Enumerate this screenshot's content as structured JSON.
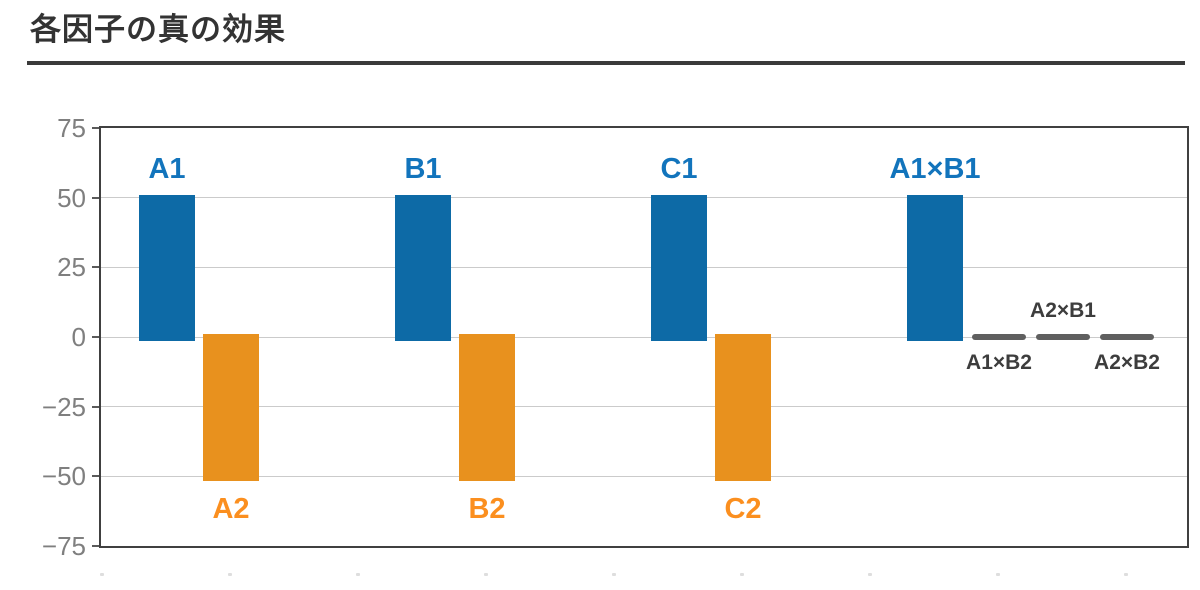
{
  "title": "各因子の真の効果",
  "chart_data": {
    "type": "bar",
    "title": "各因子の真の効果",
    "xlabel": "",
    "ylabel": "",
    "ylim": [
      -75,
      75
    ],
    "grid": "horizontal",
    "legend": "none",
    "yticks": [
      {
        "label": "75",
        "value": 75
      },
      {
        "label": "50",
        "value": 50
      },
      {
        "label": "25",
        "value": 25
      },
      {
        "label": "0",
        "value": 0
      },
      {
        "label": "−25",
        "value": -25
      },
      {
        "label": "−50",
        "value": -50
      },
      {
        "label": "−75",
        "value": -75
      }
    ],
    "gridline_values": [
      50,
      25,
      0,
      -25,
      -50
    ],
    "bars": [
      {
        "id": "a1",
        "label": "A1",
        "value": 51,
        "extent": [
          51,
          -1.5
        ],
        "pos": 0,
        "style": "blue",
        "label_side": "above"
      },
      {
        "id": "a2",
        "label": "A2",
        "value": -51,
        "extent": [
          1,
          -51.5
        ],
        "pos": 1,
        "style": "orange",
        "label_side": "below"
      },
      {
        "id": "b1",
        "label": "B1",
        "value": 51,
        "extent": [
          51,
          -1.5
        ],
        "pos": 4,
        "style": "blue",
        "label_side": "above"
      },
      {
        "id": "b2",
        "label": "B2",
        "value": -51,
        "extent": [
          1,
          -51.5
        ],
        "pos": 5,
        "style": "orange",
        "label_side": "below"
      },
      {
        "id": "c1",
        "label": "C1",
        "value": 51,
        "extent": [
          51,
          -1.5
        ],
        "pos": 8,
        "style": "blue",
        "label_side": "above"
      },
      {
        "id": "c2",
        "label": "C2",
        "value": -51,
        "extent": [
          1,
          -51.5
        ],
        "pos": 9,
        "style": "orange",
        "label_side": "below"
      },
      {
        "id": "a1xb1",
        "label": "A1×B1",
        "value": 51,
        "extent": [
          51,
          -1.5
        ],
        "pos": 12,
        "style": "blue",
        "label_side": "above"
      },
      {
        "id": "a1xb2",
        "label": "A1×B2",
        "value": 0,
        "extent": [
          1,
          -1
        ],
        "pos": 13,
        "style": "gray",
        "label_side": "below"
      },
      {
        "id": "a2xb1",
        "label": "A2×B1",
        "value": 0,
        "extent": [
          1,
          -1
        ],
        "pos": 14,
        "style": "gray",
        "label_side": "above"
      },
      {
        "id": "a2xb2",
        "label": "A2×B2",
        "value": 0,
        "extent": [
          1,
          -1
        ],
        "pos": 15,
        "style": "gray",
        "label_side": "below"
      }
    ],
    "colors": {
      "blue_bar": "#0d6aa6",
      "blue_label": "#1274bc",
      "orange_bar": "#e8911e",
      "orange_label": "#fb8f1f",
      "gray_bar": "#5f5f5f",
      "gray_label": "#3d3d3d",
      "grid": "#cbcbcb",
      "border": "#404040",
      "tick_text": "#7f7f7f"
    },
    "x_minor_dot_count": 9
  }
}
